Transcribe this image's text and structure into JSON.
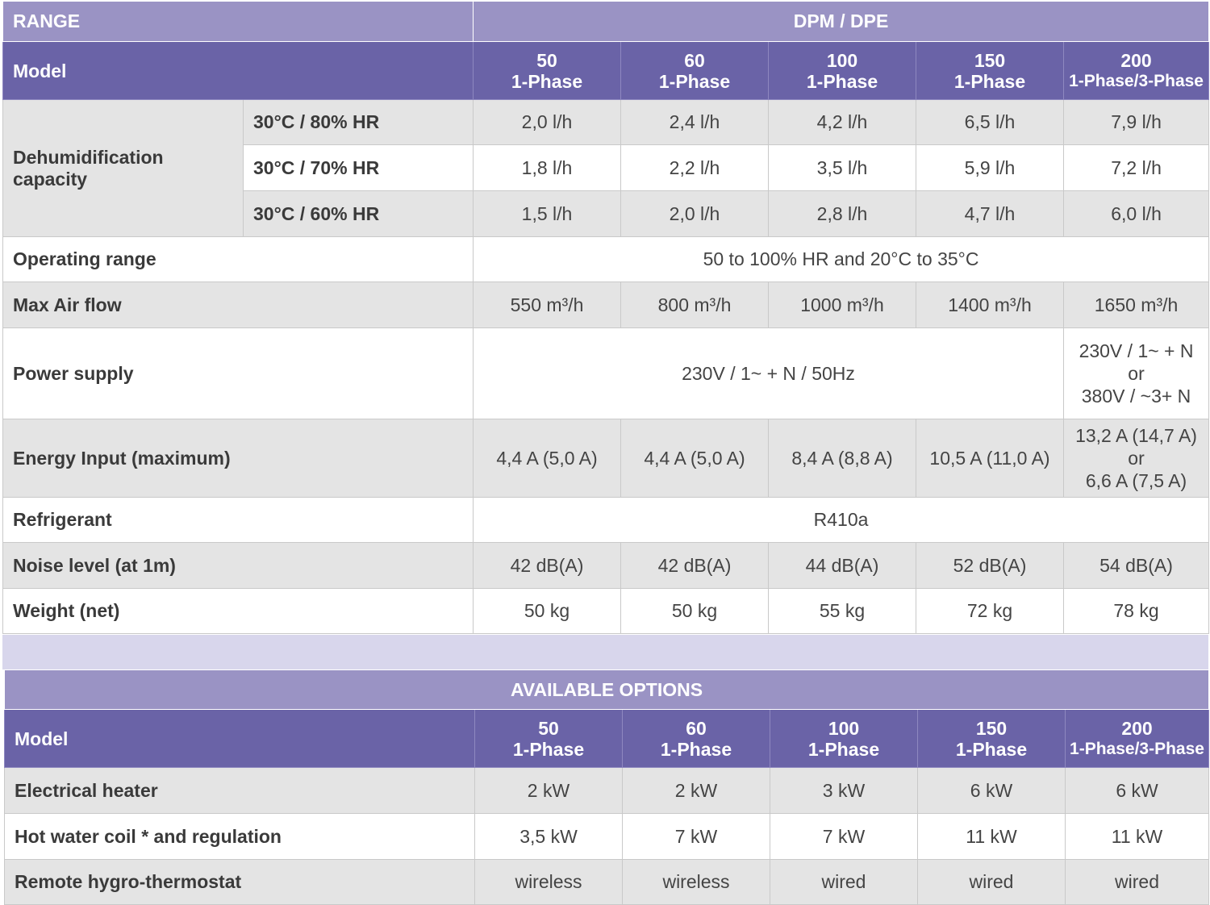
{
  "specs": {
    "range_label": "RANGE",
    "range_value": "DPM / DPE",
    "model_label": "Model",
    "models": [
      {
        "num": "50",
        "phase": "1-Phase"
      },
      {
        "num": "60",
        "phase": "1-Phase"
      },
      {
        "num": "100",
        "phase": "1-Phase"
      },
      {
        "num": "150",
        "phase": "1-Phase"
      },
      {
        "num": "200",
        "phase": "1-Phase/3-Phase"
      }
    ],
    "dehum": {
      "label": "Dehumidification capacity",
      "rows": [
        {
          "cond": "30°C / 80% HR",
          "values": [
            "2,0 l/h",
            "2,4 l/h",
            "4,2 l/h",
            "6,5 l/h",
            "7,9 l/h"
          ]
        },
        {
          "cond": "30°C / 70% HR",
          "values": [
            "1,8 l/h",
            "2,2 l/h",
            "3,5 l/h",
            "5,9 l/h",
            "7,2 l/h"
          ]
        },
        {
          "cond": "30°C / 60% HR",
          "values": [
            "1,5 l/h",
            "2,0 l/h",
            "2,8 l/h",
            "4,7 l/h",
            "6,0 l/h"
          ]
        }
      ]
    },
    "operating_range": {
      "label": "Operating range",
      "value": "50 to 100% HR and 20°C to 35°C"
    },
    "air_flow": {
      "label": "Max Air flow",
      "values": [
        "550 m³/h",
        "800 m³/h",
        "1000 m³/h",
        "1400 m³/h",
        "1650 m³/h"
      ]
    },
    "power_supply": {
      "label": "Power supply",
      "main": "230V / 1~ + N / 50Hz",
      "last_line1": "230V / 1~ + N",
      "last_or": "or",
      "last_line2": "380V / ~3+ N"
    },
    "energy_input": {
      "label": "Energy Input (maximum)",
      "values": [
        "4,4 A (5,0 A)",
        "4,4 A (5,0 A)",
        "8,4 A (8,8 A)",
        "10,5 A (11,0 A)"
      ],
      "last_line1": "13,2 A (14,7 A)",
      "last_or": "or",
      "last_line2": "6,6 A (7,5 A)"
    },
    "refrigerant": {
      "label": "Refrigerant",
      "value": "R410a"
    },
    "noise": {
      "label": "Noise level (at 1m)",
      "values": [
        "42 dB(A)",
        "42 dB(A)",
        "44 dB(A)",
        "52 dB(A)",
        "54 dB(A)"
      ]
    },
    "weight": {
      "label": "Weight (net)",
      "values": [
        "50 kg",
        "50 kg",
        "55 kg",
        "72 kg",
        "78 kg"
      ]
    }
  },
  "options": {
    "title": "AVAILABLE OPTIONS",
    "model_label": "Model",
    "models": [
      {
        "num": "50",
        "phase": "1-Phase"
      },
      {
        "num": "60",
        "phase": "1-Phase"
      },
      {
        "num": "100",
        "phase": "1-Phase"
      },
      {
        "num": "150",
        "phase": "1-Phase"
      },
      {
        "num": "200",
        "phase": "1-Phase/3-Phase"
      }
    ],
    "rows": [
      {
        "label": "Electrical heater",
        "values": [
          "2 kW",
          "2 kW",
          "3 kW",
          "6 kW",
          "6 kW"
        ]
      },
      {
        "label": "Hot water coil * and regulation",
        "values": [
          "3,5 kW",
          "7 kW",
          "7 kW",
          "11 kW",
          "11 kW"
        ]
      },
      {
        "label": "Remote hygro-thermostat",
        "values": [
          "wireless",
          "wireless",
          "wired",
          "wired",
          "wired"
        ]
      }
    ]
  },
  "colors": {
    "header_light": "#9a93c4",
    "header_dark": "#6a63a7",
    "row_gray": "#e4e4e4",
    "gap": "#d8d6ec"
  }
}
